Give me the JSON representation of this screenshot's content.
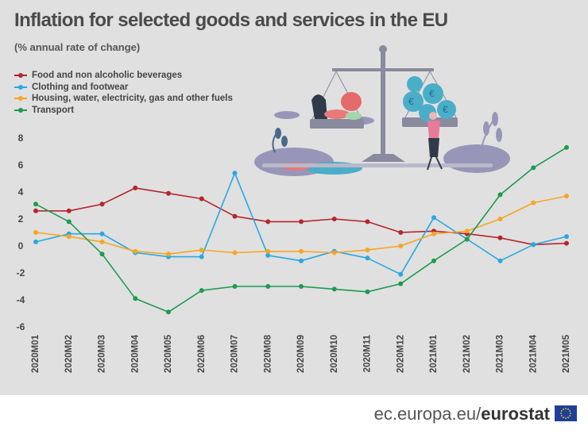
{
  "title": "Inflation for selected goods and services in the EU",
  "subtitle": "(% annual rate of change)",
  "footer": {
    "site": "ec.europa.eu/",
    "brand": "eurostat"
  },
  "illustration": {
    "name": "scales-with-goods-and-shopper-illustration"
  },
  "chart_data": {
    "type": "line",
    "title": "Inflation for selected goods and services in the EU",
    "subtitle": "(% annual rate of change)",
    "xlabel": "",
    "ylabel": "",
    "ylim": [
      -6,
      8
    ],
    "yticks": [
      -6,
      -4,
      -2,
      0,
      2,
      4,
      6,
      8
    ],
    "grid": false,
    "legend_position": "top-left",
    "categories": [
      "2020M01",
      "2020M02",
      "2020M03",
      "2020M04",
      "2020M05",
      "2020M06",
      "2020M07",
      "2020M08",
      "2020M09",
      "2020M10",
      "2020M11",
      "2020M12",
      "2021M01",
      "2021M02",
      "2021M03",
      "2021M04",
      "2021M05"
    ],
    "series": [
      {
        "name": "Food and non alcoholic beverages",
        "color": "#b5262e",
        "values": [
          2.6,
          2.6,
          3.1,
          4.3,
          3.9,
          3.5,
          2.2,
          1.8,
          1.8,
          2.0,
          1.8,
          1.0,
          1.1,
          0.9,
          0.6,
          0.1,
          0.2
        ]
      },
      {
        "name": "Clothing and footwear",
        "color": "#29a8e0",
        "values": [
          0.3,
          0.9,
          0.9,
          -0.5,
          -0.8,
          -0.8,
          5.4,
          -0.7,
          -1.1,
          -0.4,
          -0.9,
          -2.1,
          2.1,
          0.5,
          -1.1,
          0.1,
          0.7
        ]
      },
      {
        "name": "Housing, water, electricity, gas and other fuels",
        "color": "#f5a623",
        "values": [
          1.0,
          0.7,
          0.3,
          -0.4,
          -0.6,
          -0.3,
          -0.5,
          -0.4,
          -0.4,
          -0.5,
          -0.3,
          0.0,
          0.9,
          1.1,
          2.0,
          3.2,
          3.7
        ]
      },
      {
        "name": "Transport",
        "color": "#1e9b50",
        "values": [
          3.1,
          1.8,
          -0.6,
          -3.9,
          -4.9,
          -3.3,
          -3.0,
          -3.0,
          -3.0,
          -3.2,
          -3.4,
          -2.8,
          -1.1,
          0.5,
          3.8,
          5.8,
          7.3
        ]
      }
    ]
  }
}
